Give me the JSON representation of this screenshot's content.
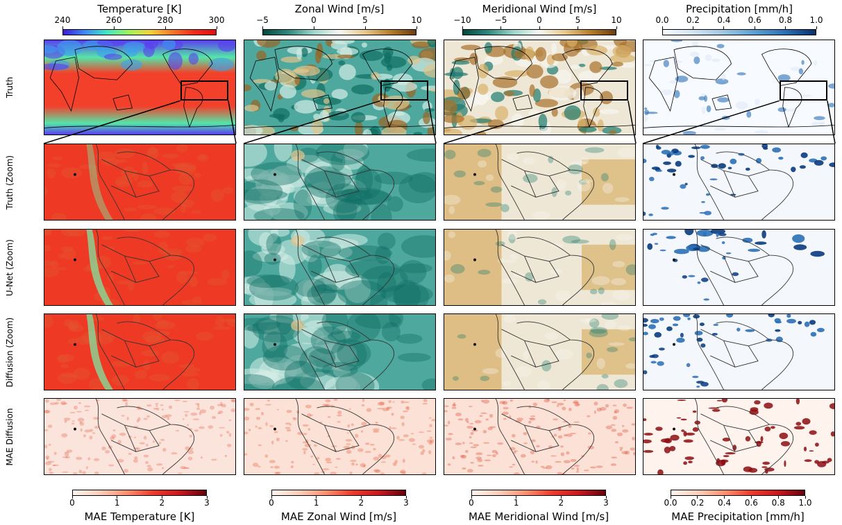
{
  "figure": {
    "columns": [
      {
        "key": "temperature",
        "top_title": "Temperature [K]",
        "top_ticks": [
          "240",
          "260",
          "280",
          "300"
        ],
        "top_gradient": [
          "#3b1bd9",
          "#3c8bf5",
          "#41e6c8",
          "#9df55a",
          "#f5d23a",
          "#f5782a",
          "#f52a1a",
          "#e01010"
        ],
        "bottom_title": "MAE Temperature [K]",
        "bottom_ticks": [
          "0",
          "1",
          "2",
          "3"
        ],
        "field_colors": {
          "truth_cold": "#5a3df0",
          "truth_mid": "#54e6a8",
          "truth_warm": "#f2402a",
          "zoom_base": "#ee3a24",
          "zoom_alt": "#e3522e",
          "andes": "#7fe6a0"
        },
        "mae_colors": {
          "base": "#fbe4dc",
          "spot": "#e56b50"
        }
      },
      {
        "key": "zonal_wind",
        "top_title": "Zonal Wind [m/s]",
        "top_ticks": [
          "−5",
          "0",
          "5",
          "10"
        ],
        "top_gradient": [
          "#00473d",
          "#2e8a80",
          "#9fd6cc",
          "#f6f7f3",
          "#e9c98a",
          "#b87d2a",
          "#6b3d0f"
        ],
        "bottom_title": "MAE Zonal Wind [m/s]",
        "bottom_ticks": [
          "0",
          "1",
          "2",
          "3"
        ],
        "field_colors": {
          "base": "#4fa89d",
          "light": "#d3ece6",
          "dark": "#0e6e63",
          "tan": "#e2c48d",
          "brown": "#9a6422"
        },
        "mae_colors": {
          "base": "#fbe1d6",
          "spot": "#e4603f"
        }
      },
      {
        "key": "meridional_wind",
        "top_title": "Meridional Wind [m/s]",
        "top_ticks": [
          "−10",
          "−5",
          "0",
          "5",
          "10"
        ],
        "top_gradient": [
          "#00473d",
          "#2e8a80",
          "#9fd6cc",
          "#f6f7f3",
          "#e9c98a",
          "#b87d2a",
          "#6b3d0f"
        ],
        "bottom_title": "MAE Meridional Wind [m/s]",
        "bottom_ticks": [
          "0",
          "1",
          "2",
          "3"
        ],
        "field_colors": {
          "base": "#eee7d5",
          "light": "#f7f5ef",
          "dark": "#1d7a6e",
          "tan": "#d8b06a",
          "brown": "#a8702a"
        },
        "mae_colors": {
          "base": "#fbe1d6",
          "spot": "#dd4a32"
        }
      },
      {
        "key": "precipitation",
        "top_title": "Precipitation [mm/h]",
        "top_ticks": [
          "0.0",
          "0.2",
          "0.4",
          "0.6",
          "0.8",
          "1.0"
        ],
        "top_gradient": [
          "#f7fbff",
          "#d4e4f4",
          "#9cc7e3",
          "#5aa0d2",
          "#2a71b5",
          "#08306b"
        ],
        "bottom_title": "MAE Precipitation [mm/h]",
        "bottom_ticks": [
          "0.0",
          "0.2",
          "0.4",
          "0.6",
          "0.8",
          "1.0"
        ],
        "field_colors": {
          "base": "#f4f8fd",
          "light": "#dfeaf6",
          "dark": "#083b7d",
          "mid": "#2c6fb5"
        },
        "mae_colors": {
          "base": "#fff3ee",
          "spot": "#8c0d12"
        }
      }
    ],
    "rows": [
      "Truth",
      "Truth (Zoom)",
      "U-Net (Zoom)",
      "Diffusion (Zoom)",
      "MAE Diffusion"
    ],
    "mae_gradient": [
      "#fff5f0",
      "#fdd0bb",
      "#fc9272",
      "#ef3b2c",
      "#cb181d",
      "#67000d"
    ]
  }
}
